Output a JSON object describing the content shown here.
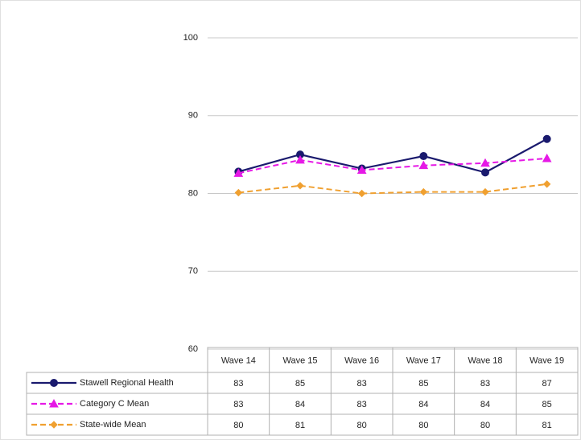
{
  "chart_data": {
    "type": "line",
    "categories": [
      "Wave 14",
      "Wave 15",
      "Wave 16",
      "Wave 17",
      "Wave 18",
      "Wave 19"
    ],
    "series": [
      {
        "name": "Stawell Regional Health",
        "color": "#1a1a6e",
        "marker": "circle",
        "dashed": false,
        "values": [
          82.8,
          85,
          83.2,
          84.8,
          82.7,
          87
        ],
        "value_labels": [
          "83",
          "85",
          "83",
          "85",
          "83",
          "87"
        ]
      },
      {
        "name": "Category C Mean",
        "color": "#e619e6",
        "marker": "triangle",
        "dashed": true,
        "values": [
          82.6,
          84.3,
          83,
          83.6,
          83.9,
          84.5
        ],
        "value_labels": [
          "83",
          "84",
          "83",
          "84",
          "84",
          "85"
        ]
      },
      {
        "name": "State-wide Mean",
        "color": "#f0a030",
        "marker": "diamond",
        "dashed": true,
        "values": [
          80.1,
          81,
          80,
          80.2,
          80.2,
          81.2
        ],
        "value_labels": [
          "80",
          "81",
          "80",
          "80",
          "80",
          "81"
        ]
      }
    ],
    "ylim": [
      60,
      100
    ],
    "yticks": [
      60,
      70,
      80,
      90,
      100
    ],
    "grid": true
  }
}
